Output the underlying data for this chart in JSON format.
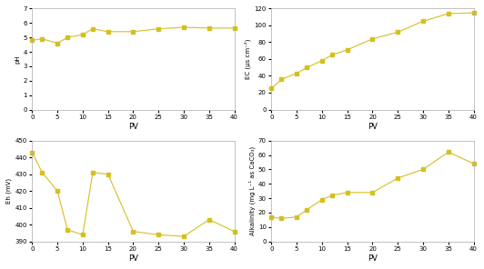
{
  "ph_x": [
    0,
    2,
    5,
    7,
    10,
    12,
    15,
    20,
    25,
    30,
    35,
    40
  ],
  "ph_y": [
    4.8,
    4.9,
    4.6,
    5.0,
    5.2,
    5.6,
    5.4,
    5.4,
    5.6,
    5.7,
    5.65,
    5.65
  ],
  "ph_ylabel": "pH",
  "ph_ylim": [
    0,
    7
  ],
  "ph_yticks": [
    0,
    1,
    2,
    3,
    4,
    5,
    6,
    7
  ],
  "ec_x": [
    0,
    2,
    5,
    7,
    10,
    12,
    15,
    20,
    25,
    30,
    35,
    40
  ],
  "ec_y": [
    25,
    36,
    43,
    50,
    58,
    65,
    71,
    84,
    92,
    105,
    114,
    115
  ],
  "ec_ylabel": "EC (μs cm⁻²)",
  "ec_ylim": [
    0,
    120
  ],
  "ec_yticks": [
    0,
    20,
    40,
    60,
    80,
    100,
    120
  ],
  "eh_x": [
    0,
    2,
    5,
    7,
    10,
    12,
    15,
    20,
    25,
    30,
    35,
    40
  ],
  "eh_y": [
    443,
    431,
    420,
    397,
    394,
    431,
    430,
    396,
    394,
    393,
    403,
    396
  ],
  "eh_ylabel": "Eh (mV)",
  "eh_ylim": [
    390,
    450
  ],
  "eh_yticks": [
    390,
    400,
    410,
    420,
    430,
    440,
    450
  ],
  "alk_x": [
    0,
    2,
    5,
    7,
    10,
    12,
    15,
    20,
    25,
    30,
    35,
    40
  ],
  "alk_y": [
    17,
    16,
    17,
    22,
    29,
    32,
    34,
    34,
    44,
    50,
    62,
    54
  ],
  "alk_ylabel": "Alkalinity (mg L⁻¹ as CaCO₃)",
  "alk_ylim": [
    0,
    70
  ],
  "alk_yticks": [
    0,
    10,
    20,
    30,
    40,
    50,
    60,
    70
  ],
  "xlabel": "PV",
  "xlim": [
    0,
    40
  ],
  "xticks": [
    0,
    5,
    10,
    15,
    20,
    25,
    30,
    35,
    40
  ],
  "line_color": "#d4c020",
  "marker": "s",
  "markersize": 2.5,
  "linewidth": 0.8,
  "bg_color": "#ffffff",
  "plot_bg": "#ffffff",
  "spine_color": "#aaaaaa"
}
